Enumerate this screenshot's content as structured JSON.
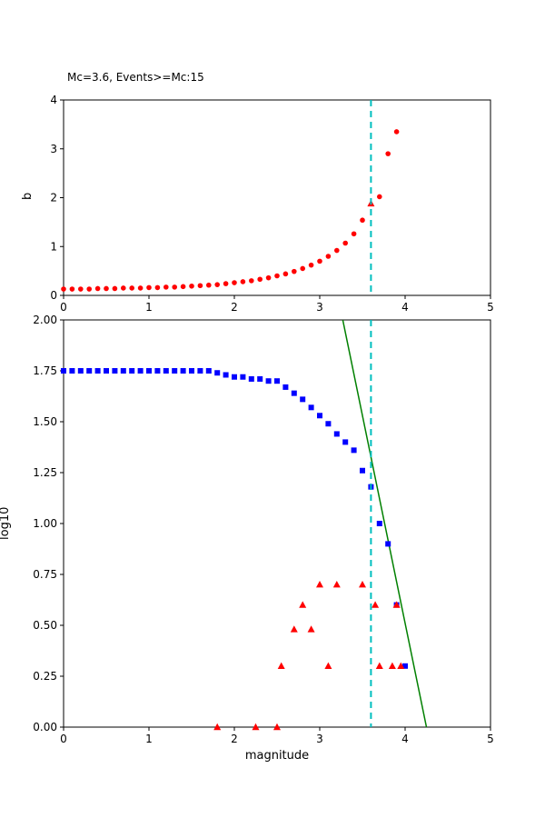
{
  "figure": {
    "background": "#ffffff",
    "axis_color": "#000000",
    "tick_label_color": "#000000"
  },
  "chart_data": [
    {
      "type": "scatter",
      "title": "Mc=3.6, Events>=Mc:15",
      "xlabel": "",
      "ylabel": "b",
      "xlim": [
        0,
        5
      ],
      "ylim": [
        0,
        4
      ],
      "xticks": [
        0,
        1,
        2,
        3,
        4,
        5
      ],
      "xtick_labels": [
        "0",
        "1",
        "2",
        "3",
        "4",
        "5"
      ],
      "yticks": [
        0,
        1,
        2,
        3,
        4
      ],
      "ytick_labels": [
        "0",
        "1",
        "2",
        "3",
        "4"
      ],
      "grid": false,
      "legend": "none",
      "vline": {
        "x": 3.6,
        "color": "#00bfbf",
        "dash": true
      },
      "series": [
        {
          "name": "b-value-curve",
          "marker": "dot",
          "color": "#ff0000",
          "x": [
            0.0,
            0.1,
            0.2,
            0.3,
            0.4,
            0.5,
            0.6,
            0.7,
            0.8,
            0.9,
            1.0,
            1.1,
            1.2,
            1.3,
            1.4,
            1.5,
            1.6,
            1.7,
            1.8,
            1.9,
            2.0,
            2.1,
            2.2,
            2.3,
            2.4,
            2.5,
            2.6,
            2.7,
            2.8,
            2.9,
            3.0,
            3.1,
            3.2,
            3.3,
            3.4,
            3.5,
            3.7,
            3.8,
            3.9
          ],
          "y": [
            0.13,
            0.13,
            0.13,
            0.13,
            0.14,
            0.14,
            0.14,
            0.15,
            0.15,
            0.15,
            0.16,
            0.16,
            0.17,
            0.17,
            0.18,
            0.19,
            0.2,
            0.21,
            0.22,
            0.24,
            0.26,
            0.28,
            0.3,
            0.33,
            0.36,
            0.4,
            0.44,
            0.49,
            0.55,
            0.62,
            0.7,
            0.8,
            0.92,
            1.07,
            1.26,
            1.54,
            2.02,
            2.9,
            3.35
          ]
        },
        {
          "name": "mc-marker",
          "marker": "triangle",
          "color": "#ff0000",
          "x": [
            3.6
          ],
          "y": [
            1.88
          ]
        }
      ]
    },
    {
      "type": "scatter",
      "title": "",
      "xlabel": "magnitude",
      "ylabel": "log10",
      "xlim": [
        0,
        5
      ],
      "ylim": [
        0,
        2
      ],
      "xticks": [
        0,
        1,
        2,
        3,
        4,
        5
      ],
      "xtick_labels": [
        "0",
        "1",
        "2",
        "3",
        "4",
        "5"
      ],
      "yticks": [
        0,
        0.25,
        0.5,
        0.75,
        1.0,
        1.25,
        1.5,
        1.75,
        2.0
      ],
      "ytick_labels": [
        "0.00",
        "0.25",
        "0.50",
        "0.75",
        "1.00",
        "1.25",
        "1.50",
        "1.75",
        "2.00"
      ],
      "grid": false,
      "legend": "none",
      "vline": {
        "x": 3.6,
        "color": "#00bfbf",
        "dash": true
      },
      "series": [
        {
          "name": "gr-fit-line",
          "marker": "line",
          "color": "#008000",
          "x": [
            3.27,
            4.25
          ],
          "y": [
            2.0,
            0.0
          ]
        },
        {
          "name": "cumulative-events",
          "marker": "square",
          "color": "#0000ff",
          "x": [
            0.0,
            0.1,
            0.2,
            0.3,
            0.4,
            0.5,
            0.6,
            0.7,
            0.8,
            0.9,
            1.0,
            1.1,
            1.2,
            1.3,
            1.4,
            1.5,
            1.6,
            1.7,
            1.8,
            1.9,
            2.0,
            2.1,
            2.2,
            2.3,
            2.4,
            2.5,
            2.6,
            2.7,
            2.8,
            2.9,
            3.0,
            3.1,
            3.2,
            3.3,
            3.4,
            3.5,
            3.6,
            3.7,
            3.8,
            3.9,
            4.0
          ],
          "y": [
            1.75,
            1.75,
            1.75,
            1.75,
            1.75,
            1.75,
            1.75,
            1.75,
            1.75,
            1.75,
            1.75,
            1.75,
            1.75,
            1.75,
            1.75,
            1.75,
            1.75,
            1.75,
            1.74,
            1.73,
            1.72,
            1.72,
            1.71,
            1.71,
            1.7,
            1.7,
            1.67,
            1.64,
            1.61,
            1.57,
            1.53,
            1.49,
            1.44,
            1.4,
            1.36,
            1.26,
            1.18,
            1.0,
            0.9,
            0.6,
            0.3
          ]
        },
        {
          "name": "binned-events",
          "marker": "triangle",
          "color": "#ff0000",
          "x": [
            1.8,
            2.25,
            2.5,
            2.55,
            2.7,
            2.8,
            2.9,
            3.0,
            3.1,
            3.2,
            3.5,
            3.65,
            3.7,
            3.85,
            3.9,
            3.95
          ],
          "y": [
            0.0,
            0.0,
            0.0,
            0.3,
            0.48,
            0.6,
            0.48,
            0.7,
            0.3,
            0.7,
            0.7,
            0.6,
            0.3,
            0.3,
            0.6,
            0.3
          ]
        }
      ]
    }
  ]
}
